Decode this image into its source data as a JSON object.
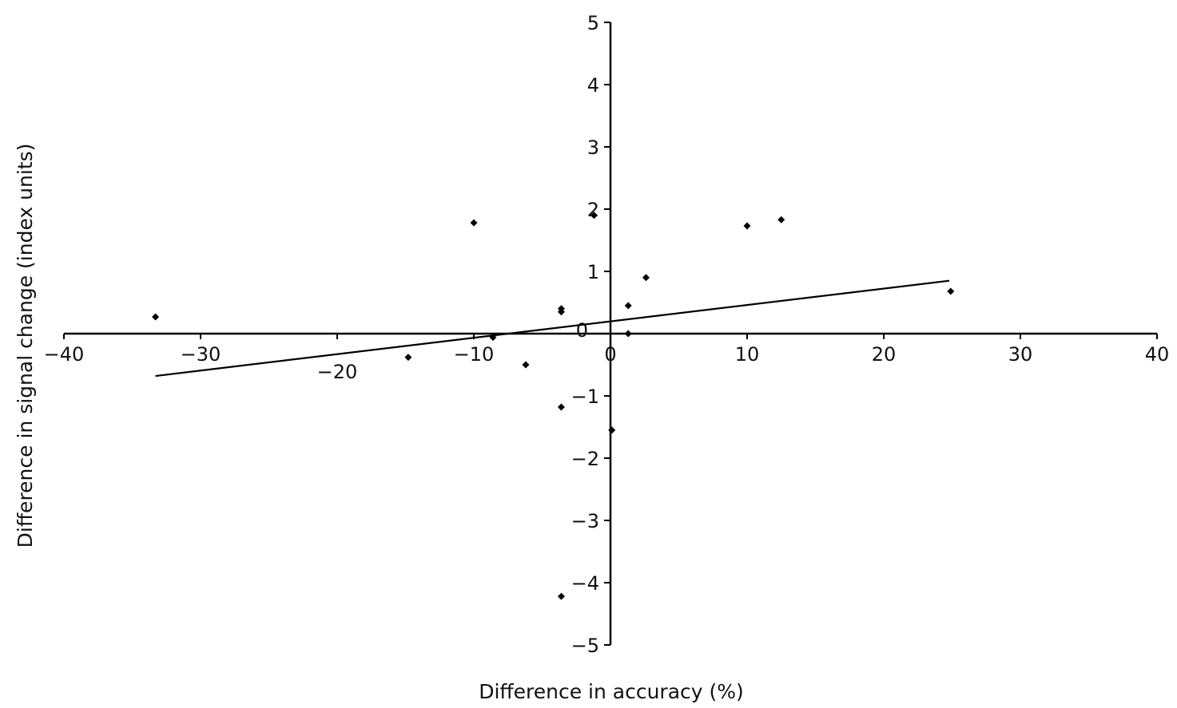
{
  "chart_data": {
    "type": "scatter",
    "title": "",
    "xlabel": "Difference in accuracy (%)",
    "ylabel": "Difference in signal change (index units)",
    "xlim": [
      -40,
      40
    ],
    "ylim": [
      -5,
      5
    ],
    "x_ticks": [
      -40,
      -30,
      -20,
      -10,
      0,
      10,
      20,
      30,
      40
    ],
    "x_tick_labels": [
      "−40",
      "−30",
      "−20",
      "−10",
      "0",
      "10",
      "20",
      "30",
      "40"
    ],
    "y_ticks": [
      -5,
      -4,
      -3,
      -2,
      -1,
      0,
      1,
      2,
      3,
      4,
      5
    ],
    "y_tick_labels": [
      "−5",
      "−4",
      "−3",
      "−2",
      "−1",
      "0",
      "1",
      "2",
      "3",
      "4",
      "5"
    ],
    "grid": false,
    "legend": "none",
    "colors": {
      "points": "#000000",
      "axes": "#000000",
      "trendline": "#000000"
    },
    "points": [
      {
        "x": -33.3,
        "y": 0.27
      },
      {
        "x": -14.8,
        "y": -0.38
      },
      {
        "x": -10.0,
        "y": 1.78
      },
      {
        "x": -8.6,
        "y": -0.06
      },
      {
        "x": -6.2,
        "y": -0.5
      },
      {
        "x": -3.6,
        "y": 0.4
      },
      {
        "x": -3.6,
        "y": 0.35
      },
      {
        "x": -3.6,
        "y": -1.18
      },
      {
        "x": -3.6,
        "y": -4.22
      },
      {
        "x": -1.2,
        "y": 1.9
      },
      {
        "x": 0.1,
        "y": -1.55
      },
      {
        "x": 1.3,
        "y": 0.45
      },
      {
        "x": 1.3,
        "y": 0.0
      },
      {
        "x": 2.6,
        "y": 0.9
      },
      {
        "x": 10.0,
        "y": 1.73
      },
      {
        "x": 12.5,
        "y": 1.83
      },
      {
        "x": 24.9,
        "y": 0.68
      }
    ],
    "trendline": {
      "x": [
        -33.3,
        24.8
      ],
      "y": [
        -0.68,
        0.85
      ]
    }
  }
}
